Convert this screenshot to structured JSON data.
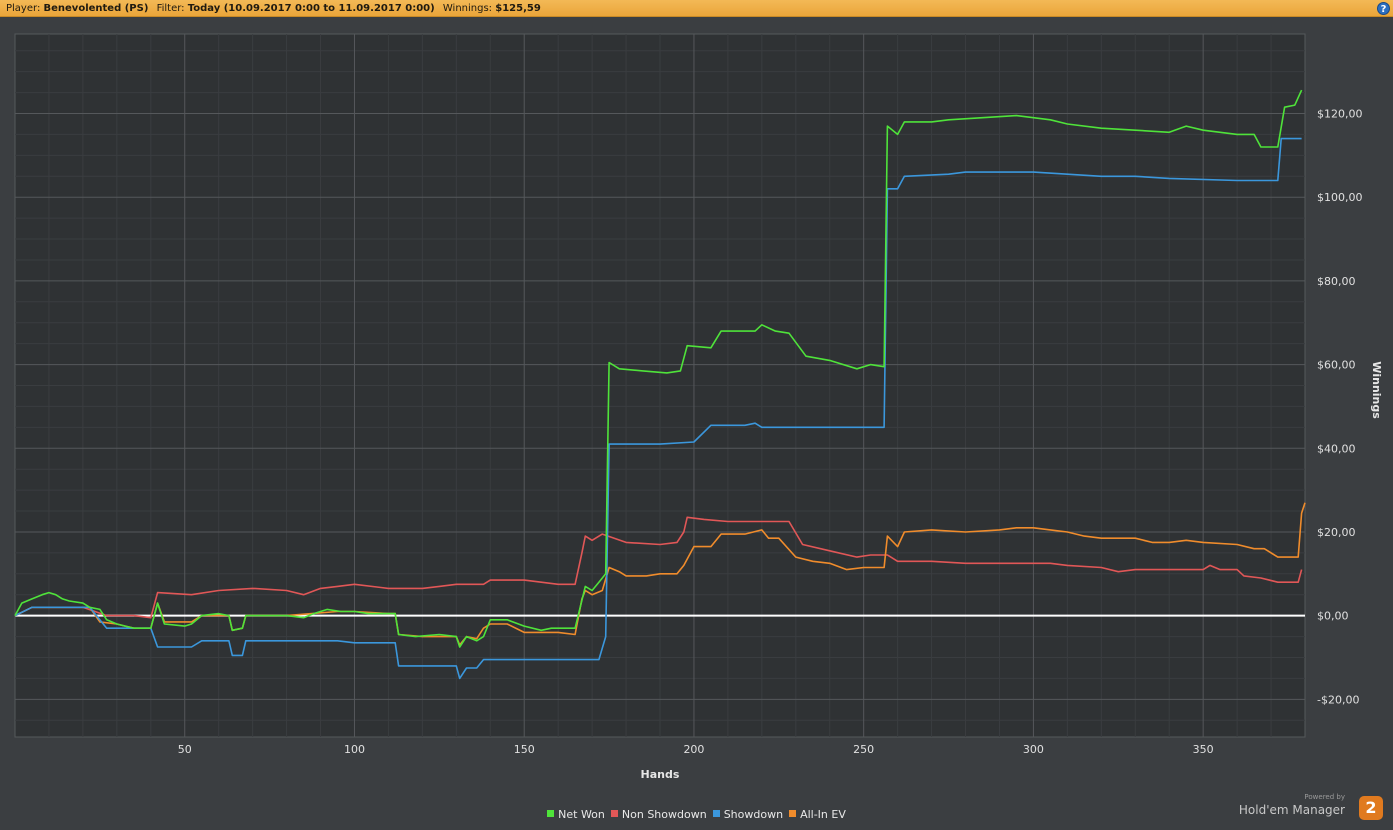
{
  "header": {
    "player_label": "Player:",
    "player_value": "Benevolented (PS)",
    "filter_label": "Filter:",
    "filter_value": "Today (10.09.2017 0:00 to 11.09.2017 0:00)",
    "winnings_label": "Winnings:",
    "winnings_value": "$125,59",
    "help_label": "?"
  },
  "branding": {
    "powered_by": "Powered by",
    "name": "Hold'em Manager",
    "logo": "2"
  },
  "chart_data": {
    "type": "line",
    "title": "",
    "xlabel": "Hands",
    "ylabel": "Winnings",
    "xlim": [
      0,
      380
    ],
    "ylim": [
      -29,
      139
    ],
    "x_ticks": [
      50,
      100,
      150,
      200,
      250,
      300,
      350
    ],
    "y_ticks": [
      -20,
      0,
      20,
      40,
      60,
      80,
      100,
      120
    ],
    "y_tick_labels": [
      "-$20,00",
      "$0,00",
      "$20,00",
      "$40,00",
      "$60,00",
      "$80,00",
      "$100,00",
      "$120,00"
    ],
    "grid": true,
    "zero_line": true,
    "legend": "bottom-center",
    "series": [
      {
        "name": "Net Won",
        "color": "#4fe33a",
        "points": [
          [
            0,
            0
          ],
          [
            2,
            3
          ],
          [
            5,
            4
          ],
          [
            8,
            5
          ],
          [
            10,
            5.5
          ],
          [
            12,
            5
          ],
          [
            14,
            4
          ],
          [
            16,
            3.5
          ],
          [
            20,
            3
          ],
          [
            22,
            2
          ],
          [
            25,
            1.5
          ],
          [
            27,
            -1
          ],
          [
            30,
            -2
          ],
          [
            35,
            -3
          ],
          [
            40,
            -3
          ],
          [
            42,
            3
          ],
          [
            44,
            -2
          ],
          [
            50,
            -2.5
          ],
          [
            52,
            -2
          ],
          [
            55,
            0
          ],
          [
            60,
            0.5
          ],
          [
            63,
            0
          ],
          [
            64,
            -3.5
          ],
          [
            67,
            -3
          ],
          [
            68,
            0
          ],
          [
            72,
            0
          ],
          [
            80,
            0
          ],
          [
            85,
            -0.5
          ],
          [
            88,
            0.5
          ],
          [
            92,
            1.5
          ],
          [
            96,
            1
          ],
          [
            100,
            1
          ],
          [
            104,
            0.5
          ],
          [
            110,
            0.5
          ],
          [
            112,
            0.5
          ],
          [
            113,
            -4.5
          ],
          [
            118,
            -5
          ],
          [
            125,
            -4.5
          ],
          [
            130,
            -5
          ],
          [
            131,
            -7.5
          ],
          [
            133,
            -5
          ],
          [
            136,
            -6
          ],
          [
            138,
            -5
          ],
          [
            140,
            -1
          ],
          [
            145,
            -1
          ],
          [
            150,
            -2.5
          ],
          [
            155,
            -3.5
          ],
          [
            158,
            -3
          ],
          [
            165,
            -3
          ],
          [
            168,
            7
          ],
          [
            170,
            6
          ],
          [
            172,
            8
          ],
          [
            174,
            10
          ],
          [
            175,
            60.5
          ],
          [
            178,
            59
          ],
          [
            185,
            58.5
          ],
          [
            192,
            58
          ],
          [
            196,
            58.5
          ],
          [
            198,
            64.5
          ],
          [
            205,
            64
          ],
          [
            208,
            68
          ],
          [
            218,
            68
          ],
          [
            220,
            69.5
          ],
          [
            224,
            68
          ],
          [
            228,
            67.5
          ],
          [
            233,
            62
          ],
          [
            240,
            61
          ],
          [
            248,
            59
          ],
          [
            252,
            60
          ],
          [
            256,
            59.5
          ],
          [
            257,
            117
          ],
          [
            260,
            115
          ],
          [
            262,
            118
          ],
          [
            270,
            118
          ],
          [
            275,
            118.5
          ],
          [
            285,
            119
          ],
          [
            295,
            119.5
          ],
          [
            300,
            119
          ],
          [
            305,
            118.5
          ],
          [
            310,
            117.5
          ],
          [
            320,
            116.5
          ],
          [
            330,
            116
          ],
          [
            340,
            115.5
          ],
          [
            345,
            117
          ],
          [
            350,
            116
          ],
          [
            360,
            115
          ],
          [
            365,
            115
          ],
          [
            367,
            112
          ],
          [
            372,
            112
          ],
          [
            374,
            121.5
          ],
          [
            377,
            122
          ],
          [
            379,
            125.6
          ]
        ]
      },
      {
        "name": "Non Showdown",
        "color": "#e15757",
        "points": [
          [
            0,
            0
          ],
          [
            5,
            2
          ],
          [
            15,
            2
          ],
          [
            20,
            2
          ],
          [
            27,
            0
          ],
          [
            35,
            0
          ],
          [
            40,
            -0.5
          ],
          [
            42,
            5.5
          ],
          [
            52,
            5
          ],
          [
            60,
            6
          ],
          [
            70,
            6.5
          ],
          [
            80,
            6
          ],
          [
            85,
            5
          ],
          [
            90,
            6.5
          ],
          [
            95,
            7
          ],
          [
            100,
            7.5
          ],
          [
            110,
            6.5
          ],
          [
            115,
            6.5
          ],
          [
            120,
            6.5
          ],
          [
            125,
            7
          ],
          [
            130,
            7.5
          ],
          [
            138,
            7.5
          ],
          [
            140,
            8.5
          ],
          [
            150,
            8.5
          ],
          [
            155,
            8
          ],
          [
            160,
            7.5
          ],
          [
            165,
            7.5
          ],
          [
            167,
            15
          ],
          [
            168,
            19
          ],
          [
            170,
            18
          ],
          [
            173,
            19.5
          ],
          [
            180,
            17.5
          ],
          [
            190,
            17
          ],
          [
            195,
            17.5
          ],
          [
            197,
            20
          ],
          [
            198,
            23.5
          ],
          [
            203,
            23
          ],
          [
            210,
            22.5
          ],
          [
            220,
            22.5
          ],
          [
            225,
            22.5
          ],
          [
            228,
            22.5
          ],
          [
            232,
            17
          ],
          [
            240,
            15.5
          ],
          [
            248,
            14
          ],
          [
            252,
            14.5
          ],
          [
            257,
            14.5
          ],
          [
            260,
            13
          ],
          [
            270,
            13
          ],
          [
            280,
            12.5
          ],
          [
            290,
            12.5
          ],
          [
            300,
            12.5
          ],
          [
            305,
            12.5
          ],
          [
            310,
            12
          ],
          [
            320,
            11.5
          ],
          [
            325,
            10.5
          ],
          [
            330,
            11
          ],
          [
            340,
            11
          ],
          [
            350,
            11
          ],
          [
            352,
            12
          ],
          [
            355,
            11
          ],
          [
            360,
            11
          ],
          [
            362,
            9.5
          ],
          [
            367,
            9
          ],
          [
            372,
            8
          ],
          [
            378,
            8
          ],
          [
            379,
            11
          ]
        ]
      },
      {
        "name": "Showdown",
        "color": "#3b97dc",
        "points": [
          [
            0,
            0
          ],
          [
            5,
            2
          ],
          [
            20,
            2
          ],
          [
            22,
            2
          ],
          [
            27,
            -3
          ],
          [
            35,
            -3
          ],
          [
            40,
            -3
          ],
          [
            42,
            -7.5
          ],
          [
            52,
            -7.5
          ],
          [
            55,
            -6
          ],
          [
            63,
            -6
          ],
          [
            64,
            -9.5
          ],
          [
            67,
            -9.5
          ],
          [
            68,
            -6
          ],
          [
            80,
            -6
          ],
          [
            95,
            -6
          ],
          [
            100,
            -6.5
          ],
          [
            110,
            -6.5
          ],
          [
            112,
            -6.5
          ],
          [
            113,
            -12
          ],
          [
            125,
            -12
          ],
          [
            130,
            -12
          ],
          [
            131,
            -15
          ],
          [
            133,
            -12.5
          ],
          [
            136,
            -12.5
          ],
          [
            138,
            -10.5
          ],
          [
            150,
            -10.5
          ],
          [
            160,
            -10.5
          ],
          [
            172,
            -10.5
          ],
          [
            174,
            -5
          ],
          [
            175,
            41
          ],
          [
            190,
            41
          ],
          [
            200,
            41.5
          ],
          [
            205,
            45.5
          ],
          [
            215,
            45.5
          ],
          [
            218,
            46
          ],
          [
            220,
            45
          ],
          [
            240,
            45
          ],
          [
            250,
            45
          ],
          [
            255,
            45
          ],
          [
            256,
            45
          ],
          [
            257,
            102
          ],
          [
            260,
            102
          ],
          [
            262,
            105
          ],
          [
            275,
            105.5
          ],
          [
            280,
            106
          ],
          [
            300,
            106
          ],
          [
            310,
            105.5
          ],
          [
            320,
            105
          ],
          [
            330,
            105
          ],
          [
            340,
            104.5
          ],
          [
            360,
            104
          ],
          [
            370,
            104
          ],
          [
            372,
            104
          ],
          [
            373,
            114
          ],
          [
            379,
            114
          ]
        ]
      },
      {
        "name": "All-In EV",
        "color": "#f08c2c",
        "points": [
          [
            0,
            0
          ],
          [
            5,
            2
          ],
          [
            20,
            2
          ],
          [
            22,
            2
          ],
          [
            25,
            -1.5
          ],
          [
            30,
            -2
          ],
          [
            35,
            -3
          ],
          [
            40,
            -3
          ],
          [
            42,
            3
          ],
          [
            44,
            -1.5
          ],
          [
            52,
            -1.5
          ],
          [
            55,
            0
          ],
          [
            63,
            0
          ],
          [
            64,
            -3.5
          ],
          [
            67,
            -3
          ],
          [
            68,
            0
          ],
          [
            80,
            0
          ],
          [
            95,
            1
          ],
          [
            100,
            1
          ],
          [
            110,
            0.5
          ],
          [
            112,
            0.5
          ],
          [
            113,
            -4.5
          ],
          [
            120,
            -5
          ],
          [
            130,
            -5
          ],
          [
            131,
            -7
          ],
          [
            133,
            -5
          ],
          [
            136,
            -5.5
          ],
          [
            138,
            -3
          ],
          [
            140,
            -2
          ],
          [
            145,
            -2
          ],
          [
            150,
            -4
          ],
          [
            155,
            -4
          ],
          [
            160,
            -4
          ],
          [
            165,
            -4.5
          ],
          [
            167,
            4
          ],
          [
            168,
            6
          ],
          [
            170,
            5
          ],
          [
            173,
            6
          ],
          [
            175,
            11.5
          ],
          [
            178,
            10.5
          ],
          [
            180,
            9.5
          ],
          [
            186,
            9.5
          ],
          [
            190,
            10
          ],
          [
            195,
            10
          ],
          [
            197,
            12
          ],
          [
            200,
            16.5
          ],
          [
            205,
            16.5
          ],
          [
            208,
            19.5
          ],
          [
            215,
            19.5
          ],
          [
            220,
            20.5
          ],
          [
            222,
            18.5
          ],
          [
            225,
            18.5
          ],
          [
            230,
            14
          ],
          [
            235,
            13
          ],
          [
            240,
            12.5
          ],
          [
            245,
            11
          ],
          [
            250,
            11.5
          ],
          [
            256,
            11.5
          ],
          [
            257,
            19
          ],
          [
            260,
            16.5
          ],
          [
            262,
            20
          ],
          [
            270,
            20.5
          ],
          [
            280,
            20
          ],
          [
            290,
            20.5
          ],
          [
            295,
            21
          ],
          [
            300,
            21
          ],
          [
            305,
            20.5
          ],
          [
            310,
            20
          ],
          [
            315,
            19
          ],
          [
            320,
            18.5
          ],
          [
            330,
            18.5
          ],
          [
            335,
            17.5
          ],
          [
            340,
            17.5
          ],
          [
            345,
            18
          ],
          [
            350,
            17.5
          ],
          [
            360,
            17
          ],
          [
            365,
            16
          ],
          [
            368,
            16
          ],
          [
            372,
            14
          ],
          [
            378,
            14
          ],
          [
            379,
            24.5
          ],
          [
            380,
            27
          ]
        ]
      }
    ]
  }
}
